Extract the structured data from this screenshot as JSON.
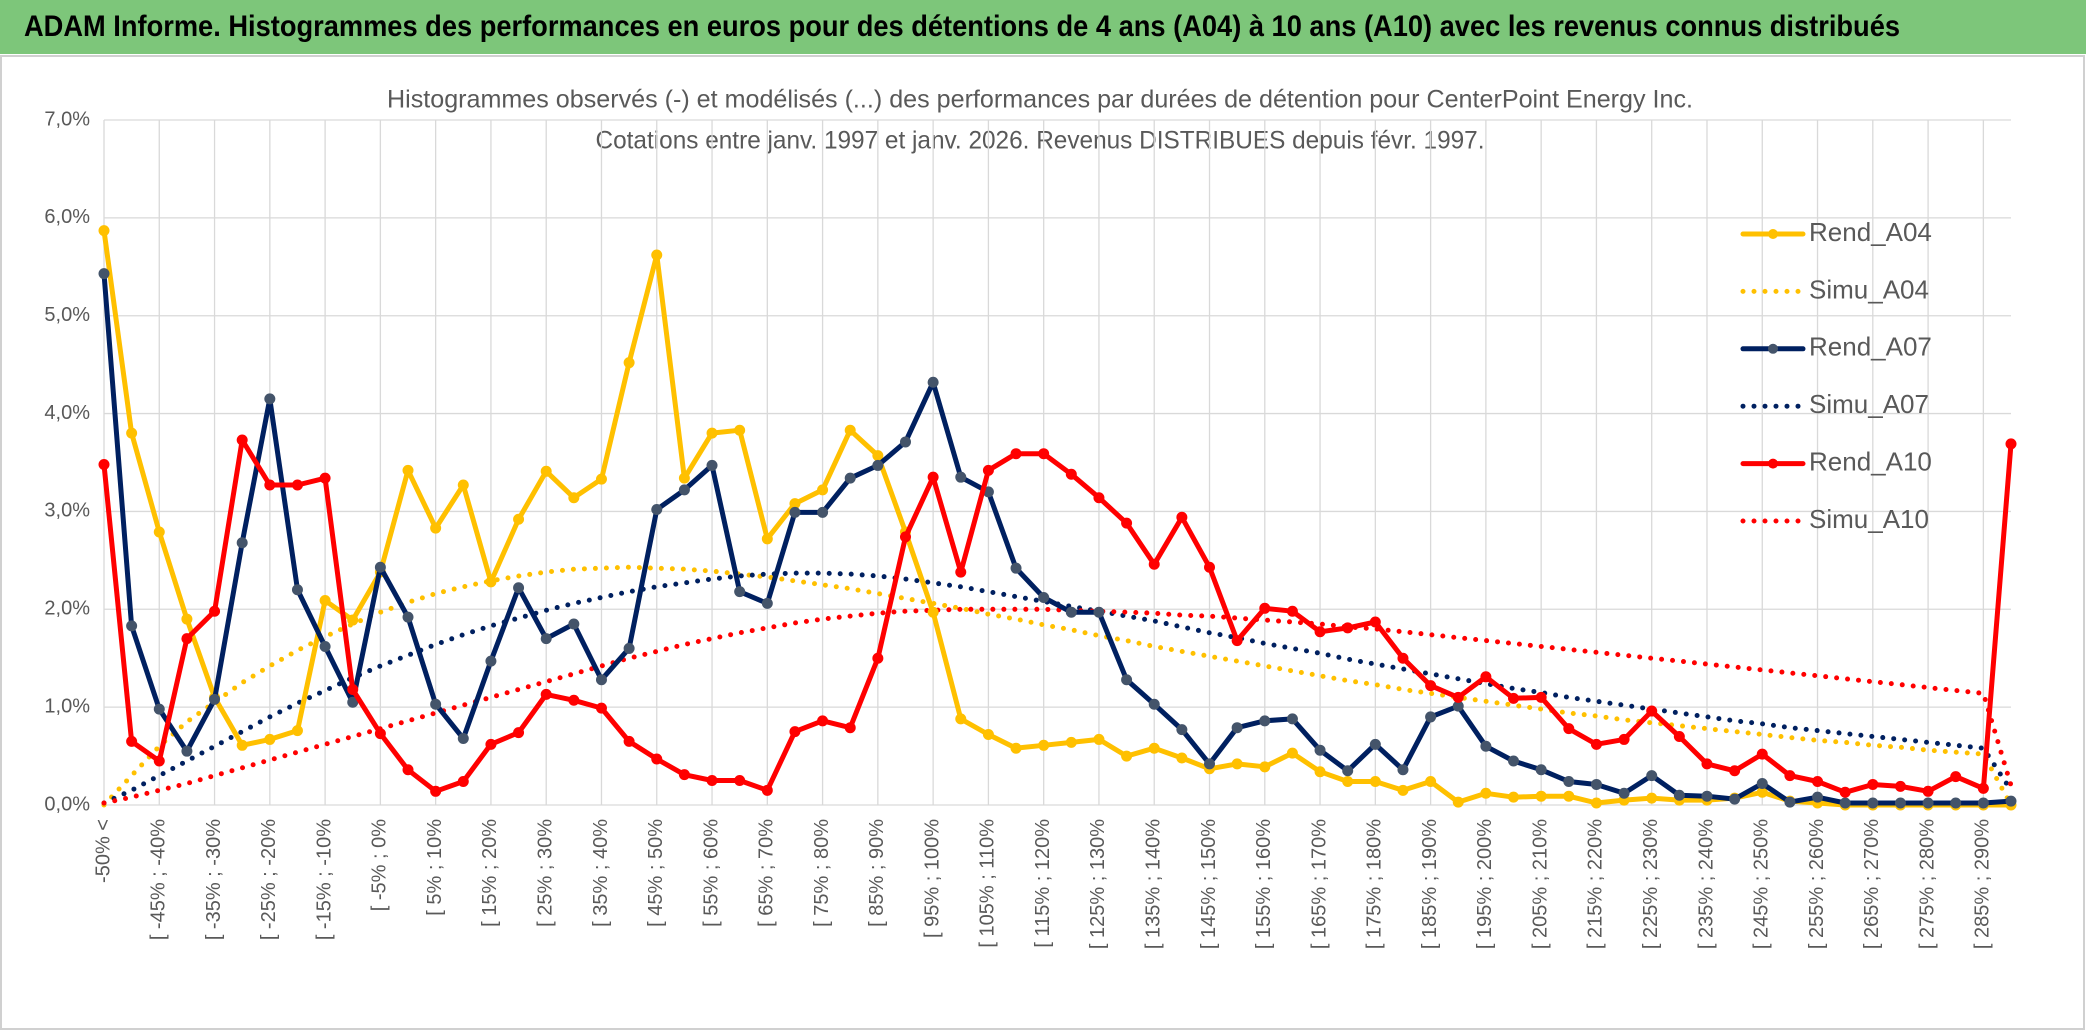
{
  "header": {
    "title": "ADAM Informe. Histogrammes des performances en euros pour des détentions de 4 ans (A04) à 10 ans (A10) avec les revenus connus distribués"
  },
  "chart_data": {
    "type": "line",
    "title": [
      "Histogrammes observés (-) et modélisés (...) des performances par durées de détention pour CenterPoint Energy Inc.",
      "Cotations entre janv. 1997 et janv. 2026. Revenus DISTRIBUES depuis févr. 1997."
    ],
    "categories": [
      "-50% <",
      null,
      "[ -45% ; -40%",
      null,
      "[ -35% ; -30%",
      null,
      "[ -25% ; -20%",
      null,
      "[ -15% ; -10%",
      null,
      "[ -5% ; 0%",
      null,
      "[ 5% ; 10%",
      null,
      "[ 15% ; 20%",
      null,
      "[ 25% ; 30%",
      null,
      "[ 35% ; 40%",
      null,
      "[ 45% ; 50%",
      null,
      "[ 55% ; 60%",
      null,
      "[ 65% ; 70%",
      null,
      "[ 75% ; 80%",
      null,
      "[ 85% ; 90%",
      null,
      "[ 95% ; 100%",
      null,
      "[ 105% ; 110%",
      null,
      "[ 115% ; 120%",
      null,
      "[ 125% ; 130%",
      null,
      "[ 135% ; 140%",
      null,
      "[ 145% ; 150%",
      null,
      "[ 155% ; 160%",
      null,
      "[ 165% ; 170%",
      null,
      "[ 175% ; 180%",
      null,
      "[ 185% ; 190%",
      null,
      "[ 195% ; 200%",
      null,
      "[ 205% ; 210%",
      null,
      "[ 215% ; 220%",
      null,
      "[ 225% ; 230%",
      null,
      "[ 235% ; 240%",
      null,
      "[ 245% ; 250%",
      null,
      "[ 255% ; 260%",
      null,
      "[ 265% ; 270%",
      null,
      "[ 275% ; 280%",
      null,
      "[ 285% ; 290%",
      null
    ],
    "ylim": [
      0,
      7
    ],
    "yticks": [
      {
        "value": 0,
        "label": "0,0%"
      },
      {
        "value": 1,
        "label": "1,0%"
      },
      {
        "value": 2,
        "label": "2,0%"
      },
      {
        "value": 3,
        "label": "3,0%"
      },
      {
        "value": 4,
        "label": "4,0%"
      },
      {
        "value": 5,
        "label": "5,0%"
      },
      {
        "value": 6,
        "label": "6,0%"
      },
      {
        "value": 7,
        "label": "7,0%"
      }
    ],
    "grid": true,
    "legend": "right",
    "series": [
      {
        "name": "Rend_A04",
        "color": "#FFC000",
        "dotted": false,
        "marker_color": "#FFC000",
        "values": [
          5.87,
          3.8,
          2.79,
          1.9,
          1.1,
          0.61,
          0.67,
          0.76,
          2.09,
          1.89,
          2.38,
          3.42,
          2.83,
          3.27,
          2.28,
          2.92,
          3.41,
          3.14,
          3.33,
          4.52,
          5.62,
          3.34,
          3.8,
          3.83,
          2.72,
          3.08,
          3.22,
          3.83,
          3.57,
          2.79,
          1.97,
          0.88,
          0.72,
          0.58,
          0.61,
          0.64,
          0.67,
          0.5,
          0.58,
          0.48,
          0.37,
          0.42,
          0.39,
          0.53,
          0.34,
          0.24,
          0.24,
          0.15,
          0.24,
          0.03,
          0.12,
          0.08,
          0.09,
          0.09,
          0.02,
          0.05,
          0.07,
          0.05,
          0.05,
          0.07,
          0.13,
          0.04,
          0.02,
          0,
          0,
          0,
          0,
          0,
          0,
          0
        ]
      },
      {
        "name": "Simu_A04",
        "color": "#FFC000",
        "dotted": true,
        "values": [
          0,
          0.3,
          0.6,
          0.85,
          1.05,
          1.25,
          1.42,
          1.58,
          1.72,
          1.85,
          1.97,
          2.07,
          2.16,
          2.23,
          2.29,
          2.34,
          2.38,
          2.41,
          2.42,
          2.43,
          2.42,
          2.41,
          2.39,
          2.36,
          2.33,
          2.29,
          2.25,
          2.21,
          2.16,
          2.11,
          2.06,
          2.01,
          1.95,
          1.9,
          1.84,
          1.79,
          1.73,
          1.68,
          1.62,
          1.57,
          1.52,
          1.47,
          1.42,
          1.37,
          1.32,
          1.27,
          1.23,
          1.18,
          1.14,
          1.1,
          1.06,
          1.02,
          0.98,
          0.94,
          0.91,
          0.87,
          0.84,
          0.81,
          0.78,
          0.75,
          0.72,
          0.69,
          0.66,
          0.64,
          0.61,
          0.59,
          0.56,
          0.54,
          0.52,
          0
        ]
      },
      {
        "name": "Rend_A07",
        "color": "#002060",
        "dotted": false,
        "marker_color": "#44546A",
        "values": [
          5.43,
          1.83,
          0.98,
          0.55,
          1.08,
          2.68,
          4.15,
          2.2,
          1.62,
          1.05,
          2.43,
          1.92,
          1.03,
          0.68,
          1.47,
          2.22,
          1.7,
          1.85,
          1.28,
          1.6,
          3.02,
          3.22,
          3.47,
          2.18,
          2.06,
          2.99,
          2.99,
          3.34,
          3.47,
          3.71,
          4.32,
          3.35,
          3.2,
          2.42,
          2.12,
          1.97,
          1.97,
          1.28,
          1.03,
          0.77,
          0.42,
          0.79,
          0.86,
          0.88,
          0.56,
          0.35,
          0.62,
          0.36,
          0.9,
          1.01,
          0.6,
          0.45,
          0.36,
          0.24,
          0.21,
          0.12,
          0.3,
          0.1,
          0.09,
          0.06,
          0.22,
          0.03,
          0.08,
          0.02,
          0.02,
          0.02,
          0.02,
          0.02,
          0.02,
          0.04
        ]
      },
      {
        "name": "Simu_A07",
        "color": "#002060",
        "dotted": true,
        "values": [
          0.02,
          0.15,
          0.3,
          0.45,
          0.6,
          0.75,
          0.9,
          1.04,
          1.17,
          1.3,
          1.42,
          1.53,
          1.64,
          1.74,
          1.83,
          1.91,
          1.99,
          2.06,
          2.12,
          2.18,
          2.23,
          2.27,
          2.31,
          2.34,
          2.36,
          2.37,
          2.37,
          2.36,
          2.34,
          2.31,
          2.27,
          2.23,
          2.18,
          2.13,
          2.08,
          2.03,
          1.98,
          1.93,
          1.88,
          1.82,
          1.76,
          1.71,
          1.65,
          1.6,
          1.55,
          1.49,
          1.44,
          1.39,
          1.34,
          1.29,
          1.24,
          1.19,
          1.15,
          1.1,
          1.06,
          1.02,
          0.98,
          0.94,
          0.9,
          0.86,
          0.83,
          0.79,
          0.76,
          0.73,
          0.7,
          0.67,
          0.64,
          0.61,
          0.58,
          0.15
        ]
      },
      {
        "name": "Rend_A10",
        "color": "#FF0000",
        "dotted": false,
        "marker_color": "#FF0000",
        "values": [
          3.48,
          0.65,
          0.45,
          1.7,
          1.98,
          3.73,
          3.27,
          3.27,
          3.34,
          1.18,
          0.73,
          0.36,
          0.14,
          0.24,
          0.62,
          0.74,
          1.13,
          1.07,
          0.99,
          0.65,
          0.47,
          0.31,
          0.25,
          0.25,
          0.15,
          0.75,
          0.86,
          0.79,
          1.5,
          2.74,
          3.35,
          2.38,
          3.42,
          3.59,
          3.59,
          3.38,
          3.14,
          2.88,
          2.46,
          2.94,
          2.43,
          1.68,
          2.01,
          1.98,
          1.77,
          1.81,
          1.87,
          1.5,
          1.22,
          1.1,
          1.31,
          1.09,
          1.1,
          0.78,
          0.62,
          0.67,
          0.96,
          0.7,
          0.42,
          0.35,
          0.52,
          0.3,
          0.24,
          0.13,
          0.21,
          0.19,
          0.14,
          0.29,
          0.17,
          3.69
        ]
      },
      {
        "name": "Simu_A10",
        "color": "#FF0000",
        "dotted": true,
        "values": [
          0.02,
          0.08,
          0.15,
          0.22,
          0.3,
          0.38,
          0.46,
          0.54,
          0.62,
          0.7,
          0.78,
          0.86,
          0.94,
          1.02,
          1.1,
          1.18,
          1.26,
          1.34,
          1.42,
          1.5,
          1.57,
          1.64,
          1.7,
          1.76,
          1.81,
          1.86,
          1.9,
          1.93,
          1.96,
          1.98,
          1.99,
          2.0,
          2.0,
          2.0,
          2.0,
          1.99,
          1.98,
          1.97,
          1.96,
          1.94,
          1.93,
          1.91,
          1.89,
          1.87,
          1.85,
          1.82,
          1.8,
          1.77,
          1.74,
          1.71,
          1.68,
          1.65,
          1.62,
          1.59,
          1.56,
          1.53,
          1.5,
          1.47,
          1.44,
          1.41,
          1.38,
          1.35,
          1.32,
          1.29,
          1.26,
          1.23,
          1.2,
          1.17,
          1.14,
          0.2
        ]
      }
    ]
  }
}
